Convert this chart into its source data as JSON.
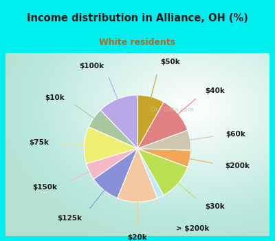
{
  "title": "Income distribution in Alliance, OH (%)",
  "subtitle": "White residents",
  "title_color": "#1a1a1a",
  "subtitle_color": "#b06820",
  "background_cyan": "#00f0f0",
  "labels": [
    "$100k",
    "$10k",
    "$75k",
    "$150k",
    "$125k",
    "$20k",
    "> $200k",
    "$30k",
    "$200k",
    "$60k",
    "$40k",
    "$50k"
  ],
  "sizes": [
    12,
    6,
    11,
    5,
    9,
    12,
    2,
    11,
    5,
    6,
    11,
    8
  ],
  "colors": [
    "#b8a8e8",
    "#aac8a0",
    "#f0ee70",
    "#f4b8c8",
    "#8890d8",
    "#f4c8a0",
    "#c0e8ff",
    "#b8e050",
    "#f0a858",
    "#cec8b0",
    "#e08080",
    "#c8a428"
  ],
  "startangle": 90,
  "label_fontsize": 7.5,
  "label_fontweight": "bold",
  "label_color": "#1a1a1a",
  "watermark": "City-Data.com"
}
